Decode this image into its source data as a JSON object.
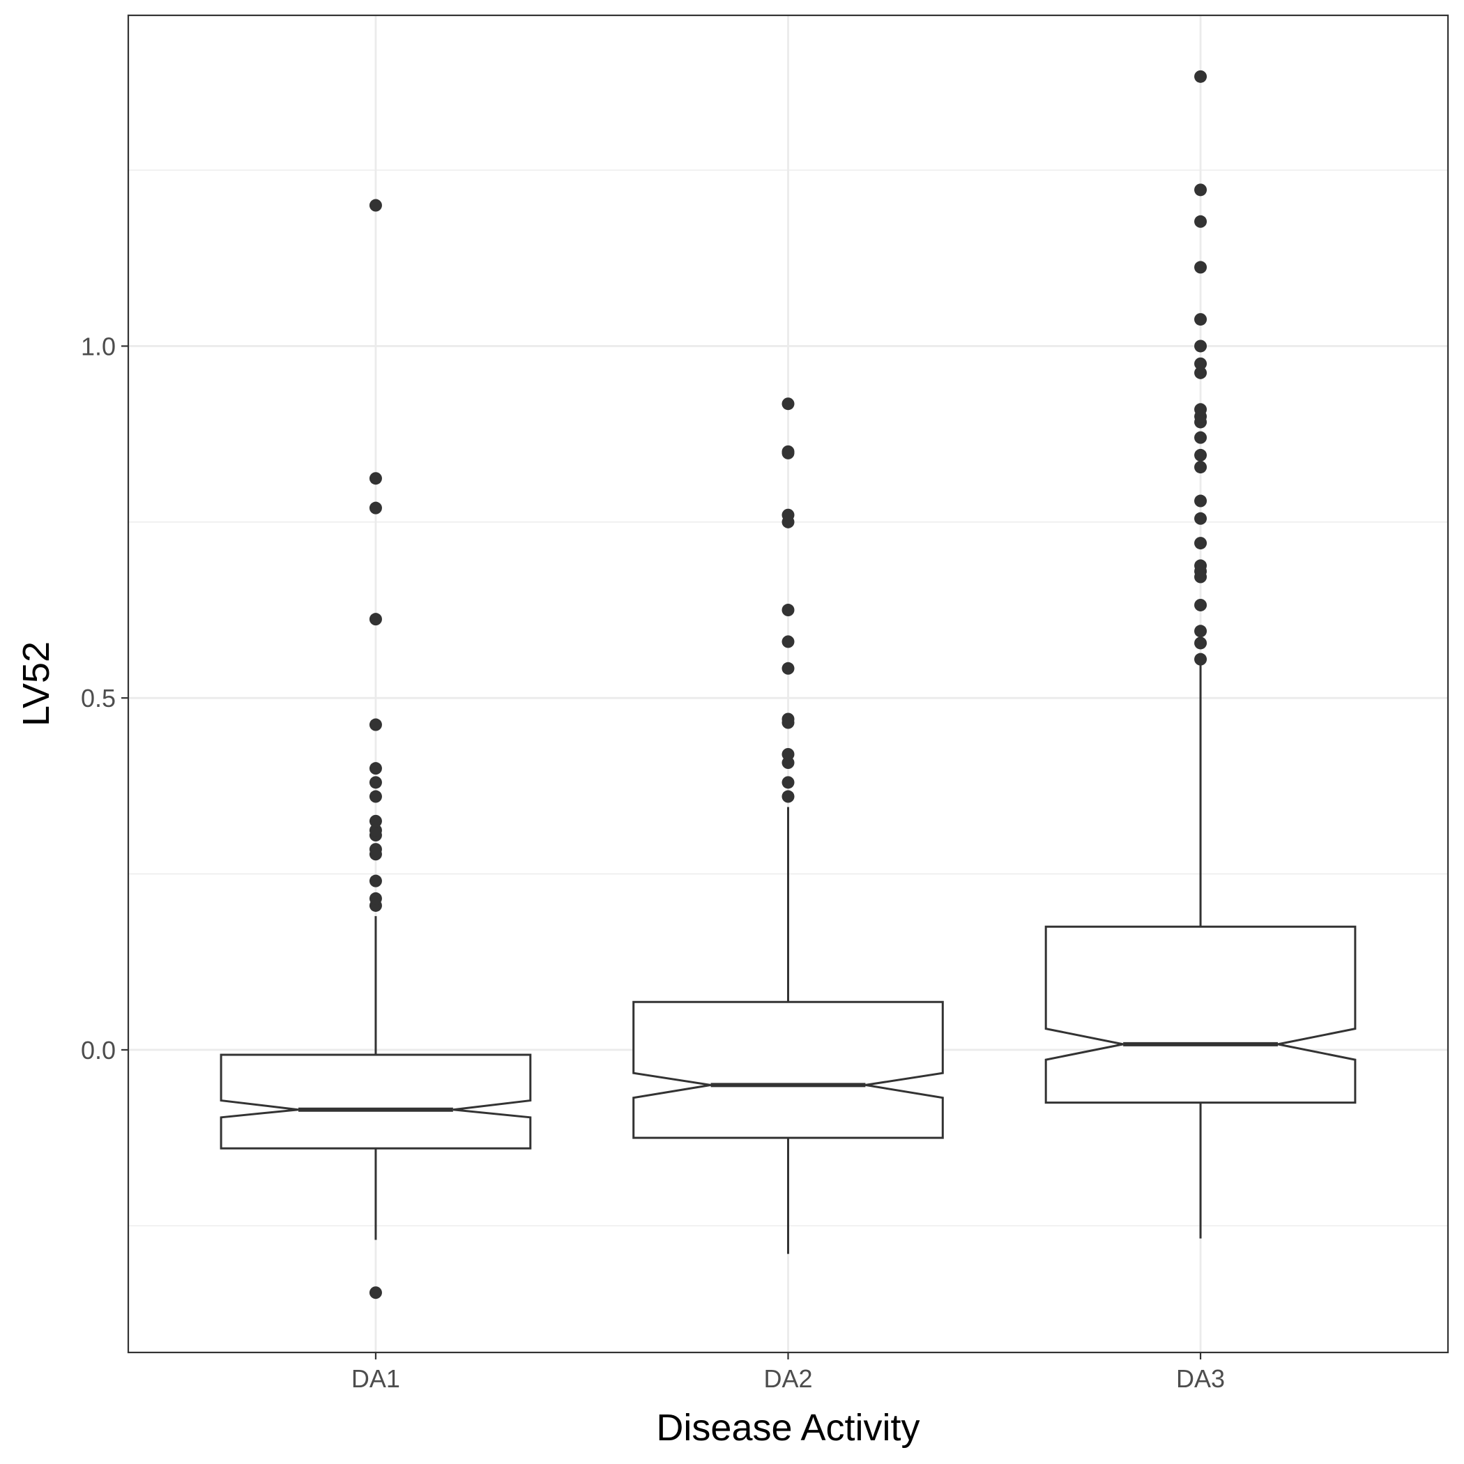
{
  "chart_data": {
    "type": "boxplot",
    "notched": true,
    "xlabel": "Disease Activity",
    "ylabel": "LV52",
    "ylim": [
      -0.43,
      1.47
    ],
    "yticks": [
      0.0,
      0.5,
      1.0
    ],
    "ytick_labels": [
      "0.0",
      "0.5",
      "1.0"
    ],
    "grid": true,
    "categories": [
      "DA1",
      "DA2",
      "DA3"
    ],
    "boxes": [
      {
        "category": "DA1",
        "whisker_low": -0.27,
        "q1": -0.14,
        "notch_low": -0.096,
        "median": -0.085,
        "notch_high": -0.072,
        "q3": -0.007,
        "whisker_high": 0.19,
        "outliers": [
          -0.345,
          0.205,
          0.215,
          0.24,
          0.278,
          0.285,
          0.305,
          0.312,
          0.325,
          0.36,
          0.38,
          0.4,
          0.462,
          0.612,
          0.77,
          0.812,
          1.2
        ]
      },
      {
        "category": "DA2",
        "whisker_low": -0.29,
        "q1": -0.125,
        "notch_low": -0.068,
        "median": -0.05,
        "notch_high": -0.033,
        "q3": 0.068,
        "whisker_high": 0.345,
        "outliers": [
          0.36,
          0.38,
          0.408,
          0.42,
          0.465,
          0.47,
          0.542,
          0.58,
          0.625,
          0.75,
          0.76,
          0.848,
          0.85,
          0.918
        ]
      },
      {
        "category": "DA3",
        "whisker_low": -0.268,
        "q1": -0.075,
        "notch_low": -0.014,
        "median": 0.008,
        "notch_high": 0.03,
        "q3": 0.175,
        "whisker_high": 0.555,
        "outliers": [
          0.555,
          0.578,
          0.595,
          0.632,
          0.672,
          0.68,
          0.688,
          0.72,
          0.755,
          0.78,
          0.828,
          0.845,
          0.87,
          0.892,
          0.9,
          0.91,
          0.962,
          0.975,
          1.0,
          1.038,
          1.112,
          1.177,
          1.222,
          1.383
        ]
      }
    ]
  }
}
